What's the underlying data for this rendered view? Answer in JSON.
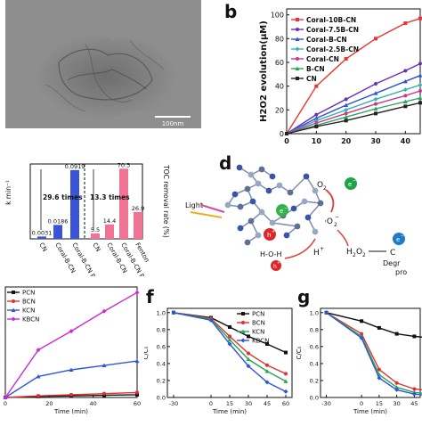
{
  "panels": {
    "b": "b",
    "d": "d",
    "f": "f",
    "g": "g"
  },
  "tem": {
    "scalebar": "100nm"
  },
  "colors": {
    "coral10b": "#e8352e",
    "coral75b": "#6a2fb5",
    "coralb": "#2e53d6",
    "coral25b": "#37b3b3",
    "coral": "#c8398e",
    "b": "#2aa55c",
    "cn": "#222222",
    "pcn": "#111111",
    "bcn": "#e03030",
    "kcn": "#2f56d8",
    "kbcn": "#cc2bd2",
    "bar_blue": "#3b54d6",
    "bar_pink": "#f07394"
  },
  "chart_data": [
    {
      "id": "b",
      "type": "line",
      "xlabel": "",
      "ylabel": "H2O2 evolution(μM)",
      "xlim": [
        0,
        45
      ],
      "ylim": [
        0,
        105
      ],
      "x": [
        0,
        10,
        20,
        30,
        40,
        45
      ],
      "xticks": [
        "0",
        "10",
        "20",
        "30",
        "40"
      ],
      "yticks": [
        "0",
        "20",
        "40",
        "60",
        "80",
        "100"
      ],
      "series": [
        {
          "name": "Coral-10B-CN",
          "color": "#e8352e",
          "values": [
            0,
            40,
            63,
            80,
            93,
            97
          ]
        },
        {
          "name": "Coral-7.5B-CN",
          "color": "#6a2fb5",
          "values": [
            0,
            16,
            29,
            42,
            53,
            59
          ]
        },
        {
          "name": "Coral-B-CN",
          "color": "#2e53d6",
          "values": [
            0,
            13,
            24,
            34,
            44,
            49
          ]
        },
        {
          "name": "Coral-2.5B-CN",
          "color": "#37b3b3",
          "values": [
            0,
            11,
            20,
            29,
            37,
            41
          ]
        },
        {
          "name": "Coral-CN",
          "color": "#c8398e",
          "values": [
            0,
            9,
            17,
            25,
            32,
            36
          ]
        },
        {
          "name": "B-CN",
          "color": "#2aa55c",
          "values": [
            0,
            7,
            14,
            21,
            27,
            30
          ]
        },
        {
          "name": "CN",
          "color": "#222222",
          "values": [
            0,
            6,
            11,
            17,
            23,
            26
          ]
        }
      ]
    },
    {
      "id": "c",
      "type": "bar",
      "ylabel_left": "k min⁻¹",
      "ylabel_right": "TOC removal rate (%)",
      "groups": [
        {
          "axis": "left",
          "categories": [
            "CN",
            "Coral-B-CN",
            "Coral-B-CN PSF"
          ],
          "values": [
            0.0031,
            0.0186,
            0.0919
          ],
          "labels": [
            "0.0031",
            "0.0186",
            "0.0919"
          ],
          "color": "#3b54d6",
          "ylim": [
            0,
            0.1
          ]
        },
        {
          "axis": "right",
          "categories": [
            "CN",
            "Coral-B-CN",
            "Coral-B-CN PSF",
            "Fenton"
          ],
          "values": [
            5.5,
            14.4,
            70.3,
            26.9
          ],
          "labels": [
            "5.5",
            "14.4",
            "70.3",
            "26.9"
          ],
          "color": "#f07394",
          "ylim": [
            0,
            75
          ]
        }
      ],
      "annotations": [
        "29.6 times",
        "13.3 times"
      ]
    },
    {
      "id": "e",
      "type": "line",
      "xlabel": "Time (min)",
      "x": [
        0,
        15,
        30,
        45,
        60
      ],
      "xticks": [
        "0",
        "20",
        "40",
        "60"
      ],
      "xlim": [
        0,
        60
      ],
      "ylim": [
        0,
        1
      ],
      "series": [
        {
          "name": "PCN",
          "color": "#111111",
          "values": [
            0.0,
            0.01,
            0.015,
            0.02,
            0.025
          ]
        },
        {
          "name": "BCN",
          "color": "#e03030",
          "values": [
            0.0,
            0.015,
            0.025,
            0.035,
            0.045
          ]
        },
        {
          "name": "KCN",
          "color": "#2f56d8",
          "values": [
            0.0,
            0.19,
            0.25,
            0.29,
            0.33
          ]
        },
        {
          "name": "KBCN",
          "color": "#cc2bd2",
          "values": [
            0.0,
            0.43,
            0.6,
            0.78,
            0.95
          ]
        }
      ]
    },
    {
      "id": "f",
      "type": "line",
      "xlabel": "Time (min)",
      "ylabel": "C/C₀",
      "x": [
        -30,
        0,
        15,
        30,
        45,
        60
      ],
      "xticks": [
        "-30",
        "0",
        "15",
        "30",
        "45",
        "60"
      ],
      "yticks": [
        "0.0",
        "0.2",
        "0.4",
        "0.6",
        "0.8",
        "1.0"
      ],
      "xlim": [
        -35,
        65
      ],
      "ylim": [
        0,
        1.05
      ],
      "series": [
        {
          "name": "PCN",
          "color": "#111111",
          "values": [
            1.0,
            0.94,
            0.83,
            0.72,
            0.63,
            0.53
          ]
        },
        {
          "name": "BCN",
          "color": "#e03030",
          "values": [
            1.0,
            0.93,
            0.72,
            0.52,
            0.38,
            0.28
          ]
        },
        {
          "name": "KCN",
          "color": "#2aa55c",
          "values": [
            1.0,
            0.92,
            0.68,
            0.45,
            0.31,
            0.19
          ]
        },
        {
          "name": "KBCN",
          "color": "#2f56d8",
          "values": [
            1.0,
            0.91,
            0.63,
            0.37,
            0.18,
            0.07
          ]
        }
      ]
    },
    {
      "id": "g",
      "type": "line",
      "xlabel": "Time (min)",
      "ylabel": "C/C₀",
      "x": [
        -30,
        0,
        15,
        30,
        45,
        60
      ],
      "xticks": [
        "-30",
        "0",
        "15",
        "30",
        "45"
      ],
      "yticks": [
        "0.0",
        "0.2",
        "0.4",
        "0.6",
        "0.8",
        "1.0"
      ],
      "xlim": [
        -35,
        50
      ],
      "ylim": [
        0,
        1.05
      ],
      "series": [
        {
          "color": "#111111",
          "values": [
            1.0,
            0.9,
            0.82,
            0.75,
            0.72,
            0.7
          ]
        },
        {
          "color": "#e03030",
          "values": [
            1.0,
            0.75,
            0.33,
            0.17,
            0.1,
            0.08
          ]
        },
        {
          "color": "#2aa55c",
          "values": [
            1.0,
            0.72,
            0.27,
            0.12,
            0.06,
            0.04
          ]
        },
        {
          "color": "#2f56d8",
          "values": [
            1.0,
            0.7,
            0.23,
            0.09,
            0.04,
            0.02
          ]
        }
      ]
    }
  ],
  "mechanism": {
    "light": "Light",
    "o2": "O",
    "o2_sub": "2",
    "o2_radical": "·O",
    "o2_radical_sub": "2",
    "o2_radical_sup": "−",
    "h2o2": "H",
    "h2o2_sub1": "2",
    "h2o2_mid": "O",
    "h2o2_sub2": "2",
    "h2o2_arrow_target": "C",
    "hoh": "H-O-H",
    "hplus": "H",
    "hplus_sup": "+",
    "eminus": "e",
    "eminus_sup": "−",
    "h_sym": "h",
    "h_sup": "+",
    "degr1": "Degr",
    "degr2": "pro"
  }
}
